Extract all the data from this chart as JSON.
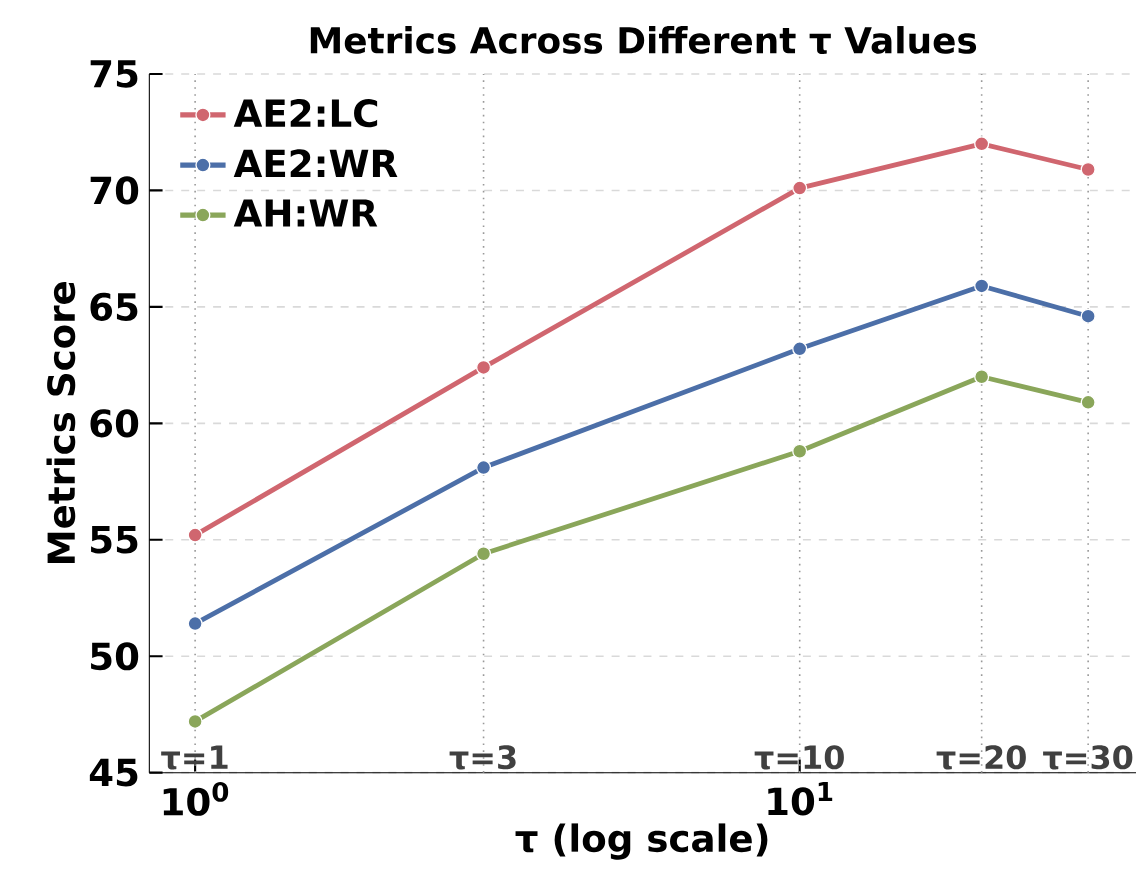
{
  "chart_data": {
    "type": "line",
    "title": "Metrics Across Different τ Values",
    "xlabel": "τ (log scale)",
    "ylabel": "Metrics Score",
    "log": "x",
    "x": [
      1,
      3,
      10,
      20,
      30
    ],
    "xlim": [
      0.84,
      36
    ],
    "xticks": [
      {
        "value": 1,
        "label": "10$^{0}$"
      },
      {
        "value": 10,
        "label": "10$^{1}$"
      }
    ],
    "ylim": [
      45,
      75
    ],
    "yticks": [
      45,
      50,
      55,
      60,
      65,
      70,
      75
    ],
    "grid": "y",
    "legend": "top left",
    "marker": "circle",
    "line_style": "solid",
    "ref_lines": [
      {
        "axis": "x",
        "value": 1,
        "label": "τ=1",
        "color": "#999999",
        "line_style": "dotted"
      },
      {
        "axis": "x",
        "value": 3,
        "label": "τ=3",
        "color": "#999999",
        "line_style": "dotted"
      },
      {
        "axis": "x",
        "value": 10,
        "label": "τ=10",
        "color": "#999999",
        "line_style": "dotted"
      },
      {
        "axis": "x",
        "value": 20,
        "label": "τ=20",
        "color": "#999999",
        "line_style": "dotted"
      },
      {
        "axis": "x",
        "value": 30,
        "label": "τ=30",
        "color": "#999999",
        "line_style": "dotted"
      }
    ],
    "series": [
      {
        "name": "AE2:LC",
        "color": "#d0666f",
        "values": [
          55.2,
          62.4,
          70.1,
          72.0,
          70.9
        ]
      },
      {
        "name": "AE2:WR",
        "color": "#4c6fa8",
        "values": [
          51.4,
          58.1,
          63.2,
          65.9,
          64.6
        ]
      },
      {
        "name": "AH:WR",
        "color": "#8aa65a",
        "values": [
          47.2,
          54.4,
          58.8,
          62.0,
          60.9
        ]
      }
    ]
  }
}
